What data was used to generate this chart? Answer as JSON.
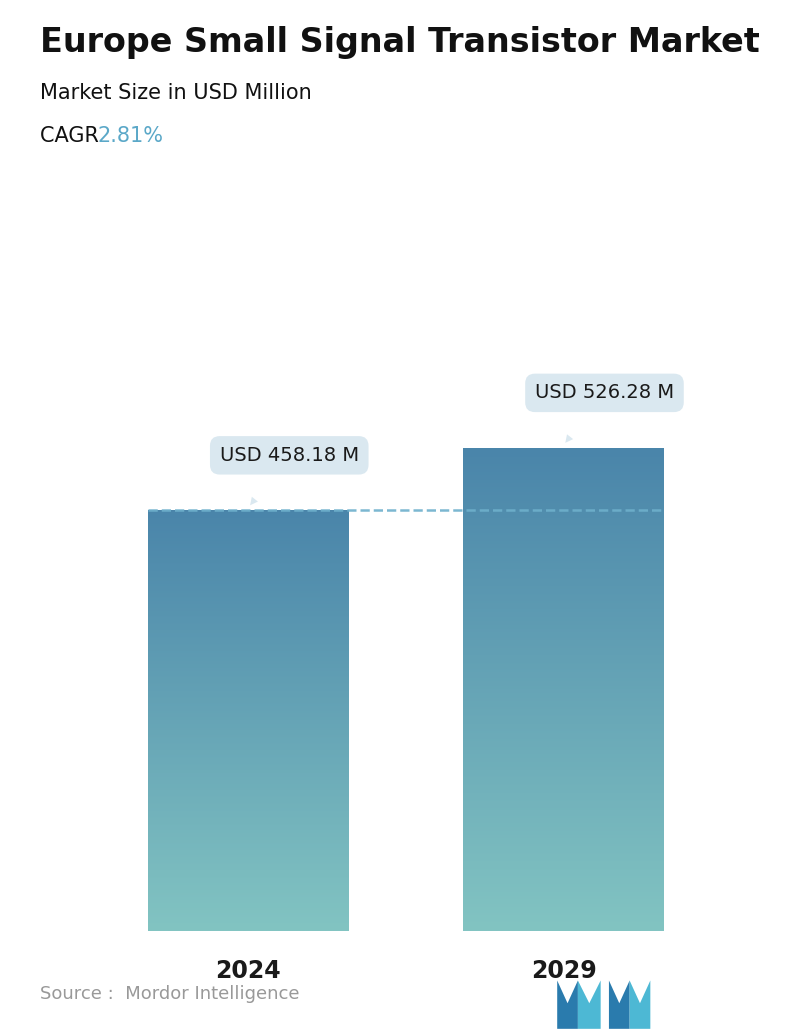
{
  "title": "Europe Small Signal Transistor Market",
  "subtitle": "Market Size in USD Million",
  "cagr_label": "CAGR ",
  "cagr_value": "2.81%",
  "cagr_color": "#5BA8C8",
  "categories": [
    "2024",
    "2029"
  ],
  "values": [
    458.18,
    526.28
  ],
  "labels": [
    "USD 458.18 M",
    "USD 526.28 M"
  ],
  "bar_color_top": "#4A85AA",
  "bar_color_bottom": "#82C4C2",
  "dashed_line_color": "#6EB0CC",
  "callout_bg_color": "#DAE8F0",
  "callout_text_color": "#1a1a1a",
  "source_text": "Source :  Mordor Intelligence",
  "source_color": "#999999",
  "background_color": "#FFFFFF",
  "ylim_max": 620,
  "bar_width": 0.28,
  "x_positions": [
    0.28,
    0.72
  ],
  "title_fontsize": 24,
  "subtitle_fontsize": 15,
  "cagr_fontsize": 15,
  "callout_fontsize": 14,
  "xtick_fontsize": 17,
  "source_fontsize": 13,
  "logo_color_dark": "#2A7BAD",
  "logo_color_light": "#4DB8D4"
}
